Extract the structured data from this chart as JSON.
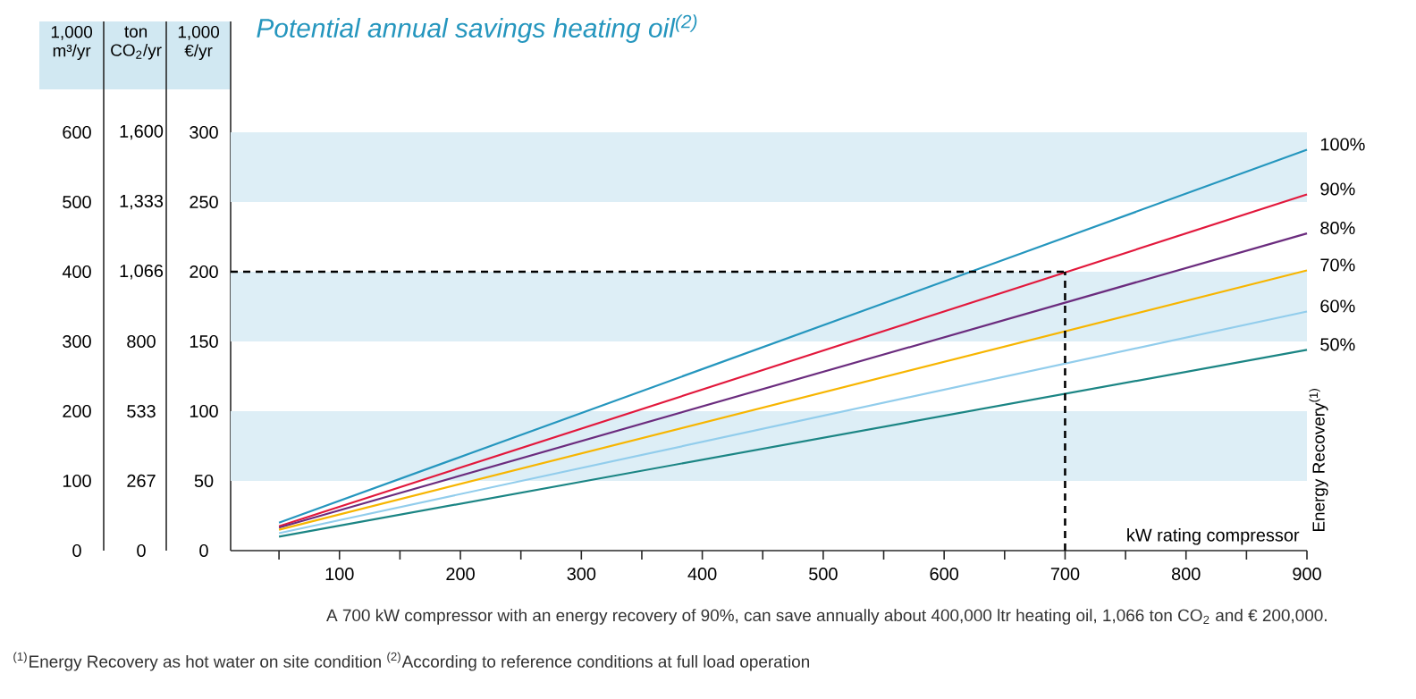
{
  "chart_data": {
    "type": "line",
    "title": "Potential annual savings heating oil$^{(2)}$",
    "xlabel": "kW rating compressor",
    "ylabel": "1,000 m³/yr",
    "y2label": "ton CO$_{2}$/yr",
    "y3label": "1,000 €/yr",
    "legend_title": "Energy Recovery$^{(1)}$",
    "x": [
      50,
      900
    ],
    "series": [
      {
        "name": "100%",
        "color": "#2596be",
        "values": [
          40,
          575
        ]
      },
      {
        "name": "90%",
        "color": "#e2183c",
        "values": [
          35,
          511
        ]
      },
      {
        "name": "80%",
        "color": "#6b2c7e",
        "values": [
          33,
          455
        ]
      },
      {
        "name": "70%",
        "color": "#f7b500",
        "values": [
          30,
          402
        ]
      },
      {
        "name": "60%",
        "color": "#92cdec",
        "values": [
          25,
          343
        ]
      },
      {
        "name": "50%",
        "color": "#1b8584",
        "values": [
          20,
          288
        ]
      }
    ],
    "xlim": [
      10,
      900
    ],
    "xticks": [
      {
        "value": 50,
        "label": null
      },
      100,
      {
        "value": 150,
        "label": null
      },
      200,
      {
        "value": 250,
        "label": null
      },
      300,
      {
        "value": 350,
        "label": null
      },
      400,
      {
        "value": 450,
        "label": null
      },
      500,
      {
        "value": 550,
        "label": null
      },
      600,
      {
        "value": 650,
        "label": null
      },
      700,
      {
        "value": 750,
        "label": null
      },
      800,
      {
        "value": 850,
        "label": null
      },
      900
    ],
    "ylim": [
      0,
      759
    ],
    "yticks": [
      0,
      100,
      200,
      300,
      400,
      500,
      600
    ],
    "y2lim": [
      0,
      2024
    ],
    "y2ticks": [
      0,
      267,
      533,
      800,
      {
        "value": 1066,
        "label": "1,066"
      },
      {
        "value": 1333,
        "label": "1,333"
      },
      {
        "value": 1600,
        "label": "1,600"
      }
    ],
    "y3lim": [
      0,
      379.5
    ],
    "y3ticks": [
      0,
      50,
      100,
      150,
      200,
      250,
      300
    ],
    "bands": [
      {
        "axis": "y",
        "from": 100,
        "to": 200,
        "color": "#ddeef6"
      },
      {
        "axis": "y",
        "from": 300,
        "to": 400,
        "color": "#ddeef6"
      },
      {
        "axis": "y",
        "from": 500,
        "to": 600,
        "color": "#ddeef6"
      }
    ],
    "ref_lines": [
      {
        "axis": "x",
        "value": 700,
        "color": "#000000",
        "line_style": "dashed"
      },
      {
        "axis": "y",
        "value": 400,
        "color": "#000000",
        "line_style": "dashed"
      }
    ],
    "annotations": [
      "A 700 kW compressor with an energy recovery of 90%, can save annually about 400,000 ltr heating oil, 1,066 ton CO$_{2}$ and € 200,000.",
      "$^{(1)}$Energy Recovery as hot water on site condition $^{(2)}$According to reference conditions at full load operation"
    ]
  }
}
